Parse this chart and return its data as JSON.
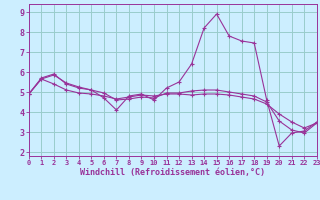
{
  "title": "",
  "xlabel": "Windchill (Refroidissement éolien,°C)",
  "hours": [
    0,
    1,
    2,
    3,
    4,
    5,
    6,
    7,
    8,
    9,
    10,
    11,
    12,
    13,
    14,
    15,
    16,
    17,
    18,
    19,
    20,
    21,
    22,
    23
  ],
  "line1": [
    4.9,
    5.7,
    5.9,
    5.4,
    5.2,
    5.1,
    4.7,
    4.1,
    4.8,
    4.9,
    4.6,
    5.2,
    5.5,
    6.4,
    8.2,
    8.9,
    7.8,
    7.55,
    7.45,
    4.6,
    2.3,
    2.95,
    3.05,
    3.5
  ],
  "line2": [
    4.9,
    5.65,
    5.4,
    5.1,
    4.95,
    4.9,
    4.8,
    4.65,
    4.75,
    4.85,
    4.8,
    4.9,
    4.9,
    4.85,
    4.9,
    4.9,
    4.85,
    4.75,
    4.65,
    4.4,
    3.9,
    3.5,
    3.2,
    3.45
  ],
  "line3": [
    4.9,
    5.65,
    5.85,
    5.45,
    5.25,
    5.1,
    4.95,
    4.6,
    4.65,
    4.75,
    4.7,
    4.95,
    4.95,
    5.05,
    5.1,
    5.1,
    5.0,
    4.9,
    4.8,
    4.5,
    3.55,
    3.1,
    2.95,
    3.45
  ],
  "line_color": "#993399",
  "bg_color": "#cceeff",
  "grid_color": "#99cccc",
  "xlim": [
    0,
    23
  ],
  "ylim": [
    1.8,
    9.4
  ],
  "yticks": [
    2,
    3,
    4,
    5,
    6,
    7,
    8,
    9
  ],
  "xticks": [
    0,
    1,
    2,
    3,
    4,
    5,
    6,
    7,
    8,
    9,
    10,
    11,
    12,
    13,
    14,
    15,
    16,
    17,
    18,
    19,
    20,
    21,
    22,
    23
  ],
  "marker": "+",
  "markersize": 3,
  "linewidth": 0.8,
  "tick_fontsize": 5,
  "label_fontsize": 6,
  "tick_color": "#993399",
  "label_color": "#993399",
  "axis_color": "#993399"
}
